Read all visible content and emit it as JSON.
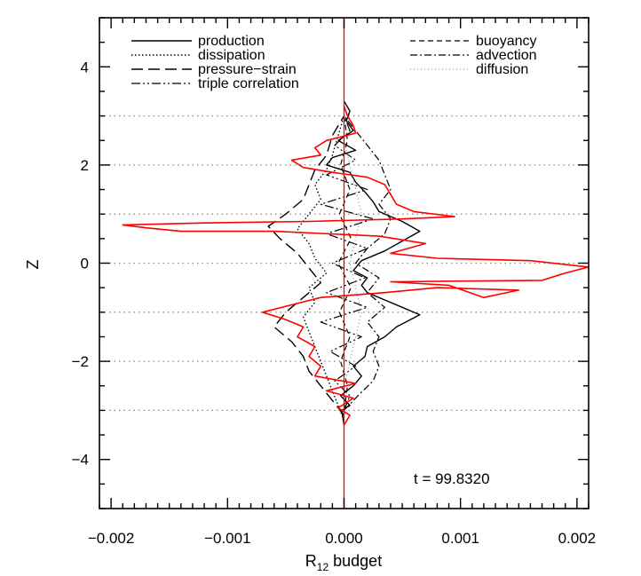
{
  "chart_data": {
    "type": "line",
    "xlabel": "R",
    "xlabel_sub": "12",
    "xlabel_suffix": " budget",
    "ylabel": "Z",
    "xlim": [
      -0.0021,
      0.0021
    ],
    "ylim": [
      -5,
      5
    ],
    "x_ticks": [
      {
        "value": -0.002,
        "label": "−0.002"
      },
      {
        "value": -0.001,
        "label": "−0.001"
      },
      {
        "value": 0.0,
        "label": "0.000"
      },
      {
        "value": 0.001,
        "label": "0.001"
      },
      {
        "value": 0.002,
        "label": "0.002"
      }
    ],
    "y_ticks": [
      {
        "value": -4,
        "label": "−4"
      },
      {
        "value": -2,
        "label": "−2"
      },
      {
        "value": 0,
        "label": "0"
      },
      {
        "value": 2,
        "label": "2"
      },
      {
        "value": 4,
        "label": "4"
      }
    ],
    "reference_lines_z": [
      -3,
      -2,
      -1,
      0,
      1,
      2,
      3
    ],
    "annotation": "t = 99.8320",
    "legend": {
      "left": [
        {
          "label": "production",
          "style": "solid"
        },
        {
          "label": "dissipation",
          "style": "dotted"
        },
        {
          "label": "pressure−strain",
          "style": "longdash"
        },
        {
          "label": "triple correlation",
          "style": "dashdotdot"
        }
      ],
      "right": [
        {
          "label": "buoyancy",
          "style": "dashed"
        },
        {
          "label": "advection",
          "style": "dashdot"
        },
        {
          "label": "diffusion",
          "style": "thindot"
        }
      ]
    },
    "series": [
      {
        "style": "solid",
        "color": "#000000",
        "points": [
          [
            0,
            -3.3
          ],
          [
            -2e-05,
            -3.0
          ],
          [
            5e-05,
            -2.9
          ],
          [
            -3e-05,
            -2.7
          ],
          [
            8e-05,
            -2.5
          ],
          [
            0.00015,
            -2.3
          ],
          [
            8e-05,
            -2.1
          ],
          [
            0.00018,
            -1.9
          ],
          [
            0.0002,
            -1.7
          ],
          [
            0.00035,
            -1.5
          ],
          [
            0.00045,
            -1.3
          ],
          [
            0.00065,
            -1.05
          ],
          [
            0.0005,
            -0.9
          ],
          [
            0.00035,
            -0.75
          ],
          [
            0.0002,
            -0.6
          ],
          [
            0.00015,
            -0.45
          ],
          [
            0.0002,
            -0.3
          ],
          [
            8e-05,
            -0.15
          ],
          [
            0.00015,
            0.05
          ],
          [
            0.00035,
            0.25
          ],
          [
            0.0005,
            0.45
          ],
          [
            0.00065,
            0.65
          ],
          [
            0.0005,
            0.85
          ],
          [
            0.0003,
            1.05
          ],
          [
            0.00025,
            1.25
          ],
          [
            0.00018,
            1.45
          ],
          [
            0.0001,
            1.65
          ],
          [
            5e-05,
            1.85
          ],
          [
            -0.00015,
            2.0
          ],
          [
            -0.0001,
            2.15
          ],
          [
            0.0001,
            2.3
          ],
          [
            -5e-05,
            2.5
          ],
          [
            8e-05,
            2.7
          ],
          [
            2e-05,
            2.9
          ],
          [
            5e-05,
            3.1
          ],
          [
            0,
            3.3
          ]
        ]
      },
      {
        "style": "dotted",
        "color": "#000000",
        "points": [
          [
            0,
            -3.2
          ],
          [
            -5e-05,
            -2.9
          ],
          [
            -0.0001,
            -2.6
          ],
          [
            -0.00015,
            -2.3
          ],
          [
            -0.0002,
            -2.0
          ],
          [
            -0.00025,
            -1.7
          ],
          [
            -0.0003,
            -1.4
          ],
          [
            -0.00035,
            -1.1
          ],
          [
            -0.00025,
            -0.8
          ],
          [
            -0.0003,
            -0.5
          ],
          [
            -0.00015,
            -0.2
          ],
          [
            -0.00025,
            0.1
          ],
          [
            -0.0003,
            0.4
          ],
          [
            -0.0004,
            0.7
          ],
          [
            -0.0003,
            1.0
          ],
          [
            -0.0002,
            1.3
          ],
          [
            -0.00025,
            1.6
          ],
          [
            -0.00015,
            1.9
          ],
          [
            -0.0001,
            2.2
          ],
          [
            -5e-05,
            2.6
          ],
          [
            0,
            3.0
          ]
        ]
      },
      {
        "style": "longdash",
        "color": "#000000",
        "points": [
          [
            0,
            -3.1
          ],
          [
            -0.0001,
            -2.8
          ],
          [
            -0.0002,
            -2.5
          ],
          [
            -0.0003,
            -2.2
          ],
          [
            -0.00035,
            -1.9
          ],
          [
            -0.00045,
            -1.6
          ],
          [
            -0.0006,
            -1.3
          ],
          [
            -0.0005,
            -1.0
          ],
          [
            -0.00035,
            -0.7
          ],
          [
            -0.0002,
            -0.4
          ],
          [
            -0.0003,
            -0.1
          ],
          [
            -0.0004,
            0.2
          ],
          [
            -0.00055,
            0.5
          ],
          [
            -0.00065,
            0.75
          ],
          [
            -0.0005,
            1.0
          ],
          [
            -0.00035,
            1.3
          ],
          [
            -0.0003,
            1.6
          ],
          [
            -0.00025,
            1.9
          ],
          [
            -0.00015,
            2.2
          ],
          [
            -0.0001,
            2.6
          ],
          [
            0,
            3.0
          ]
        ]
      },
      {
        "style": "dashdotdot",
        "color": "#000000",
        "points": [
          [
            0,
            -3.0
          ],
          [
            5e-05,
            -2.7
          ],
          [
            -8e-05,
            -2.4
          ],
          [
            0.0001,
            -2.1
          ],
          [
            -0.00012,
            -1.8
          ],
          [
            0.00015,
            -1.5
          ],
          [
            -0.0002,
            -1.2
          ],
          [
            0.0002,
            -0.9
          ],
          [
            -0.00015,
            -0.6
          ],
          [
            0.00018,
            -0.3
          ],
          [
            -0.0001,
            0.0
          ],
          [
            0.0002,
            0.3
          ],
          [
            -0.00015,
            0.6
          ],
          [
            0.00025,
            0.9
          ],
          [
            -0.0002,
            1.2
          ],
          [
            0.0002,
            1.5
          ],
          [
            -0.00015,
            1.8
          ],
          [
            0.0001,
            2.1
          ],
          [
            -8e-05,
            2.4
          ],
          [
            5e-05,
            2.7
          ],
          [
            0,
            3.0
          ]
        ]
      },
      {
        "style": "dashed",
        "color": "#000000",
        "points": [
          [
            0,
            -3.0
          ],
          [
            3e-05,
            -2.5
          ],
          [
            -3e-05,
            -2.0
          ],
          [
            5e-05,
            -1.5
          ],
          [
            -4e-05,
            -1.0
          ],
          [
            6e-05,
            -0.5
          ],
          [
            -5e-05,
            0.0
          ],
          [
            6e-05,
            0.5
          ],
          [
            -4e-05,
            1.0
          ],
          [
            5e-05,
            1.5
          ],
          [
            -3e-05,
            2.0
          ],
          [
            3e-05,
            2.5
          ],
          [
            0,
            3.0
          ]
        ]
      },
      {
        "style": "dashdot",
        "color": "#000000",
        "points": [
          [
            0,
            -3.0
          ],
          [
            0.00012,
            -2.7
          ],
          [
            0.00025,
            -2.4
          ],
          [
            0.0003,
            -2.1
          ],
          [
            0.00025,
            -1.8
          ],
          [
            0.0003,
            -1.5
          ],
          [
            0.0002,
            -1.2
          ],
          [
            0.00035,
            -0.9
          ],
          [
            0.0002,
            -0.6
          ],
          [
            0.0003,
            -0.3
          ],
          [
            0.0001,
            0.0
          ],
          [
            0.0002,
            0.3
          ],
          [
            0.00035,
            0.6
          ],
          [
            0.0004,
            0.9
          ],
          [
            0.0003,
            1.2
          ],
          [
            0.0004,
            1.5
          ],
          [
            0.00035,
            1.8
          ],
          [
            0.0003,
            2.1
          ],
          [
            0.0002,
            2.4
          ],
          [
            0.0001,
            2.7
          ],
          [
            0,
            3.0
          ]
        ]
      },
      {
        "style": "thindot",
        "color": "#000000",
        "points": [
          [
            0,
            -2.5
          ],
          [
            5e-05,
            -2.0
          ],
          [
            0.0001,
            -1.5
          ],
          [
            0.00015,
            -1.0
          ],
          [
            0.0001,
            -0.5
          ],
          [
            5e-05,
            0.0
          ],
          [
            0.0001,
            0.5
          ],
          [
            0.00015,
            1.0
          ],
          [
            0.0001,
            1.5
          ],
          [
            5e-05,
            2.0
          ],
          [
            0,
            2.5
          ]
        ]
      },
      {
        "style": "solid",
        "color": "#ff0000",
        "points": [
          [
            0,
            -3.3
          ],
          [
            5e-05,
            -3.1
          ],
          [
            -5e-05,
            -2.95
          ],
          [
            8e-05,
            -2.75
          ],
          [
            -0.00015,
            -2.6
          ],
          [
            0.0001,
            -2.45
          ],
          [
            -0.00025,
            -2.3
          ],
          [
            -0.0002,
            -2.1
          ],
          [
            -0.0003,
            -1.9
          ],
          [
            -0.00025,
            -1.7
          ],
          [
            -0.0004,
            -1.5
          ],
          [
            -0.00035,
            -1.3
          ],
          [
            -0.0005,
            -1.15
          ],
          [
            -0.0007,
            -1.0
          ],
          [
            -0.00045,
            -0.85
          ],
          [
            -0.0002,
            -0.7
          ],
          [
            0.00035,
            -0.6
          ],
          [
            0.0008,
            -0.5
          ],
          [
            0.0015,
            -0.55
          ],
          [
            0.0012,
            -0.7
          ],
          [
            0.0009,
            -0.45
          ],
          [
            0.0004,
            -0.38
          ],
          [
            0.0017,
            -0.35
          ],
          [
            0.0019,
            -0.2
          ],
          [
            0.0021,
            -0.08
          ],
          [
            0.0016,
            0.05
          ],
          [
            0.0008,
            0.1
          ],
          [
            0.0004,
            0.2
          ],
          [
            0.0007,
            0.4
          ],
          [
            0.0003,
            0.55
          ],
          [
            -0.0006,
            0.65
          ],
          [
            -0.0014,
            0.65
          ],
          [
            -0.0017,
            0.72
          ],
          [
            -0.0019,
            0.78
          ],
          [
            -0.0012,
            0.82
          ],
          [
            -0.0003,
            0.85
          ],
          [
            0.0005,
            0.9
          ],
          [
            0.00095,
            0.95
          ],
          [
            0.0006,
            1.05
          ],
          [
            0.00045,
            1.2
          ],
          [
            0.0004,
            1.4
          ],
          [
            0.00035,
            1.6
          ],
          [
            0.0002,
            1.75
          ],
          [
            -0.0001,
            1.85
          ],
          [
            -0.00035,
            1.95
          ],
          [
            -0.00045,
            2.1
          ],
          [
            -0.0002,
            2.2
          ],
          [
            -0.00025,
            2.35
          ],
          [
            -0.00015,
            2.5
          ],
          [
            0.0001,
            2.65
          ],
          [
            8e-05,
            2.8
          ],
          [
            3e-05,
            3.0
          ],
          [
            0,
            3.2
          ]
        ]
      }
    ]
  }
}
